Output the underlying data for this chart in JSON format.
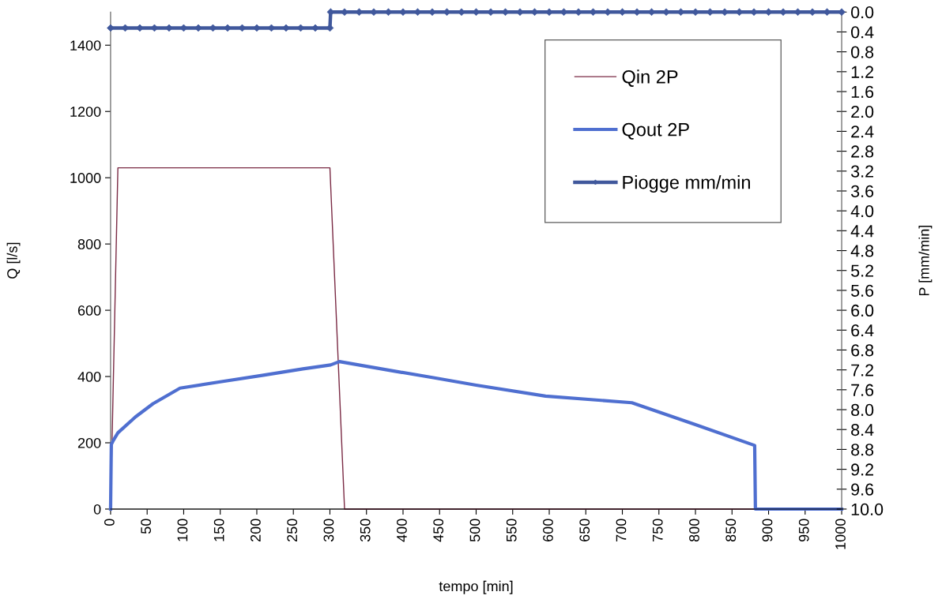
{
  "chart_data": {
    "type": "line",
    "xlabel": "tempo [min]",
    "ylabel": "Q [l/s]",
    "y2label": "P [mm/min]",
    "xlim": [
      0,
      1000
    ],
    "xticks": [
      0,
      50,
      100,
      150,
      200,
      250,
      300,
      350,
      400,
      450,
      500,
      550,
      600,
      650,
      700,
      750,
      800,
      850,
      900,
      950,
      1000
    ],
    "ylim": [
      0,
      1500
    ],
    "yticks": [
      0,
      200,
      400,
      600,
      800,
      1000,
      1200,
      1400
    ],
    "y2lim": [
      10,
      0
    ],
    "y2ticks": [
      {
        "value": 0,
        "label": "0.0"
      },
      0.4,
      0.8,
      1.2,
      1.6,
      {
        "value": 2,
        "label": "2.0"
      },
      2.4,
      2.8,
      3.2,
      3.6,
      {
        "value": 4,
        "label": "4.0"
      },
      4.4,
      4.8,
      5.2,
      5.6,
      {
        "value": 6,
        "label": "6.0"
      },
      6.4,
      6.8,
      7.2,
      7.6,
      {
        "value": 8,
        "label": "8.0"
      },
      8.4,
      8.8,
      9.2,
      9.6,
      {
        "value": 10,
        "label": "10.0"
      }
    ],
    "legend": "top right",
    "series": [
      {
        "name": "Qin 2P",
        "color": "#7a2a44",
        "x": [
          0,
          10,
          300,
          320,
          1000
        ],
        "values": [
          0,
          1030,
          1030,
          0,
          0
        ]
      },
      {
        "name": "Qout 2P",
        "color": "#4f6fd0",
        "x": [
          0,
          1,
          4,
          10,
          34,
          58,
          95,
          150,
          209,
          263,
          301,
          313,
          389,
          443,
          500,
          595,
          713,
          800,
          881,
          882,
          1000
        ],
        "values": [
          0,
          195,
          208,
          230,
          278,
          318,
          365,
          384,
          404,
          423,
          435,
          445,
          416,
          396,
          374,
          341,
          321,
          255,
          192,
          0,
          0
        ]
      },
      {
        "name": "Piogge mm/min",
        "color": "#40589c",
        "axis": "y2",
        "marker": "diamond",
        "x": [
          0,
          20,
          40,
          60,
          80,
          100,
          120,
          140,
          160,
          180,
          200,
          220,
          240,
          260,
          280,
          300,
          301,
          320,
          340,
          360,
          380,
          400,
          420,
          440,
          460,
          480,
          500,
          520,
          540,
          560,
          580,
          600,
          620,
          640,
          660,
          680,
          700,
          720,
          740,
          760,
          780,
          800,
          820,
          840,
          860,
          880,
          900,
          920,
          940,
          960,
          980,
          1000
        ],
        "values": [
          0.32,
          0.32,
          0.32,
          0.32,
          0.32,
          0.32,
          0.32,
          0.32,
          0.32,
          0.32,
          0.32,
          0.32,
          0.32,
          0.32,
          0.32,
          0.32,
          0,
          0,
          0,
          0,
          0,
          0,
          0,
          0,
          0,
          0,
          0,
          0,
          0,
          0,
          0,
          0,
          0,
          0,
          0,
          0,
          0,
          0,
          0,
          0,
          0,
          0,
          0,
          0,
          0,
          0,
          0,
          0,
          0,
          0,
          0,
          0
        ]
      }
    ]
  }
}
